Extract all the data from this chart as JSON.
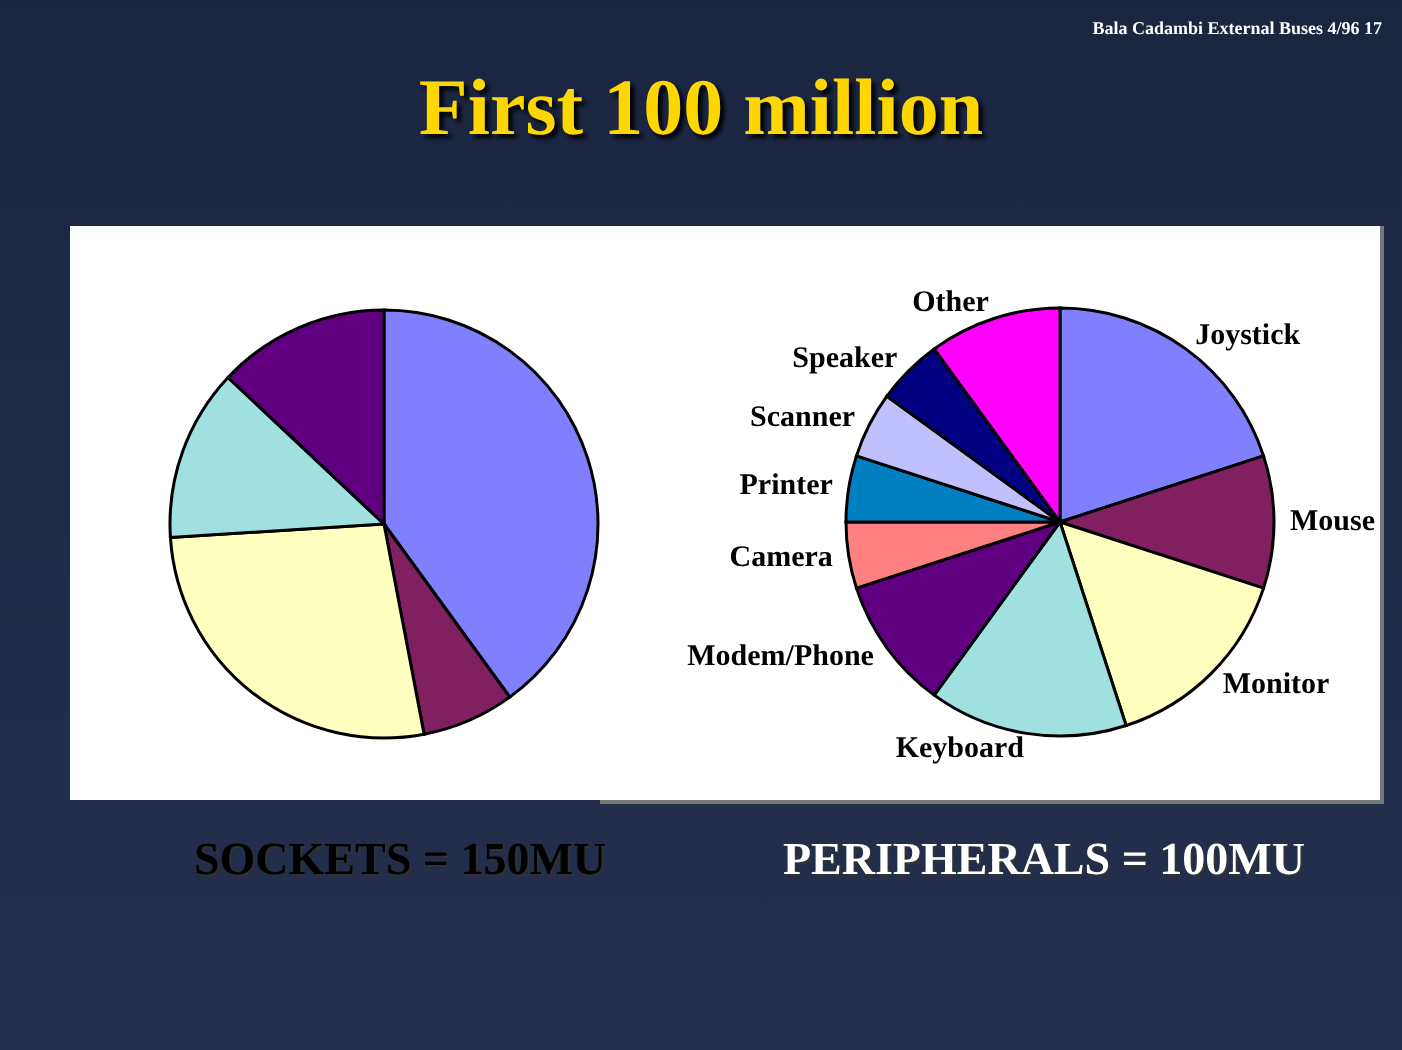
{
  "chart_data": [
    {
      "type": "pie",
      "title": "First 100 million",
      "annotations": [
        "Bala Cadambi External Buses 4/96 17"
      ],
      "xlabel": "SOCKETS = 150MU",
      "categories": [
        null,
        null,
        null,
        null,
        null
      ],
      "values": [
        40,
        7,
        27,
        13,
        13
      ],
      "colors": [
        "#8080ff",
        "#802060",
        "#ffffc0",
        "#a0e0e0",
        "#600080"
      ]
    },
    {
      "type": "pie",
      "xlabel": "PERIPHERALS = 100MU",
      "categories": [
        "Joystick",
        "Mouse",
        "Monitor",
        "Keyboard",
        "Modem/Phone",
        "Camera",
        "Printer",
        "Scanner",
        "Speaker",
        "Other"
      ],
      "values": [
        20,
        10,
        15,
        15,
        10,
        5,
        5,
        5,
        5,
        10
      ],
      "colors": [
        "#8080ff",
        "#802060",
        "#ffffc0",
        "#a0e0e0",
        "#600080",
        "#ff8080",
        "#0080c0",
        "#c0c0ff",
        "#000080",
        "#ff00ff"
      ]
    }
  ]
}
